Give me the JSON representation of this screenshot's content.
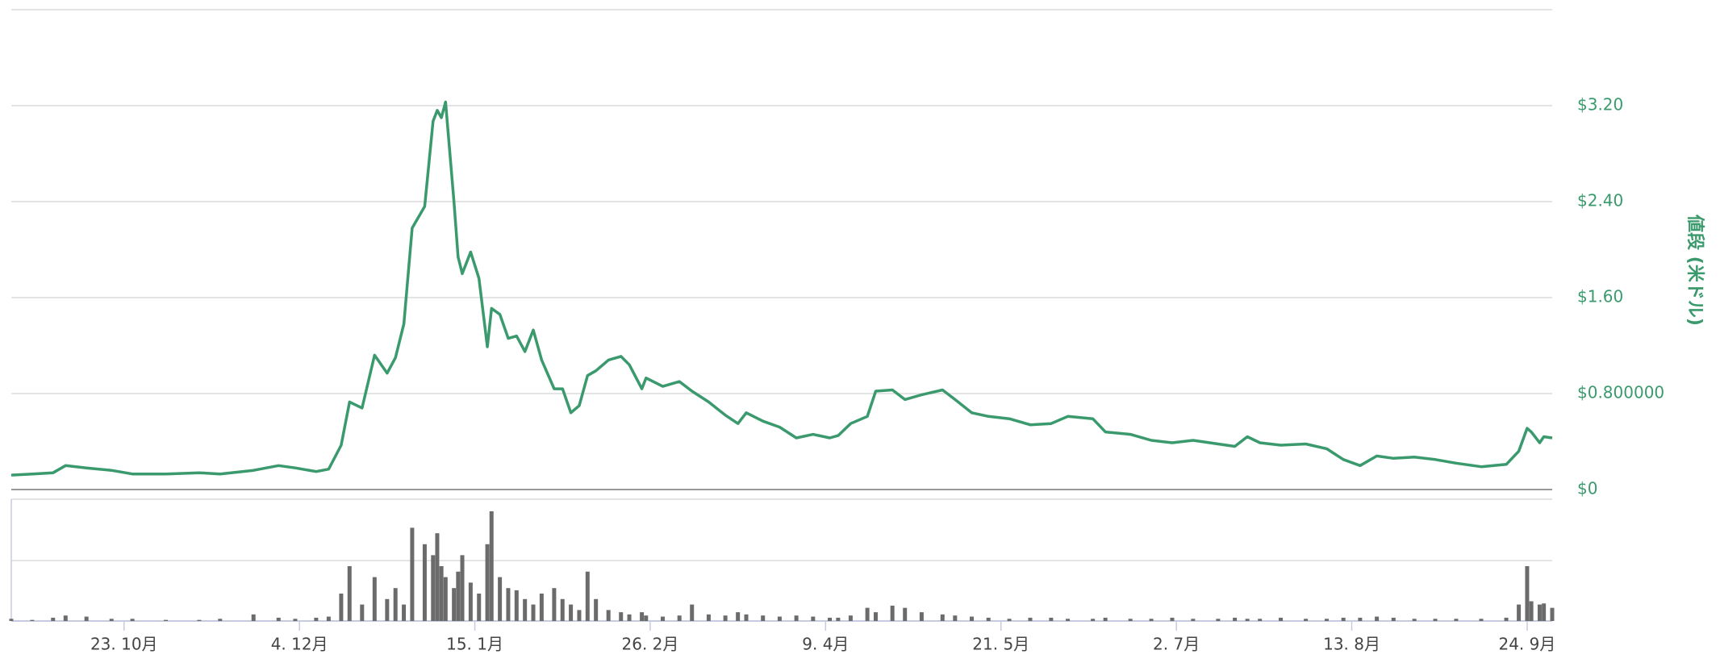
{
  "chart_data": [
    {
      "type": "line",
      "color": "#3b9a6d",
      "y2label": "値段 (米ドル)",
      "xlim": [
        0,
        369
      ],
      "x": [
        0,
        5,
        10,
        13,
        18,
        24,
        29,
        37,
        45,
        50,
        58,
        64,
        68,
        73,
        76,
        79,
        81,
        84,
        87,
        90,
        92,
        94,
        96,
        99,
        101,
        102,
        103,
        104,
        106,
        107,
        108,
        110,
        112,
        114,
        115,
        117,
        119,
        121,
        123,
        125,
        127,
        130,
        132,
        134,
        136,
        138,
        140,
        143,
        146,
        148,
        151,
        152,
        156,
        160,
        163,
        167,
        171,
        174,
        176,
        180,
        184,
        188,
        192,
        196,
        198,
        201,
        205,
        207,
        211,
        214,
        218,
        223,
        226,
        230,
        234,
        239,
        244,
        249,
        253,
        259,
        262,
        268,
        273,
        278,
        283,
        289,
        293,
        296,
        299,
        304,
        310,
        315,
        319,
        323,
        327,
        331,
        336,
        341,
        346,
        352,
        358,
        361,
        363,
        364,
        366,
        367,
        369
      ],
      "values": [
        0.12,
        0.13,
        0.14,
        0.2,
        0.18,
        0.16,
        0.13,
        0.13,
        0.14,
        0.13,
        0.16,
        0.2,
        0.18,
        0.15,
        0.17,
        0.37,
        0.73,
        0.68,
        1.12,
        0.97,
        1.1,
        1.38,
        2.18,
        2.36,
        3.07,
        3.16,
        3.1,
        3.23,
        2.4,
        1.94,
        1.8,
        1.98,
        1.76,
        1.19,
        1.51,
        1.46,
        1.26,
        1.28,
        1.15,
        1.33,
        1.08,
        0.84,
        0.84,
        0.64,
        0.7,
        0.95,
        0.99,
        1.08,
        1.11,
        1.04,
        0.84,
        0.93,
        0.86,
        0.9,
        0.82,
        0.73,
        0.62,
        0.55,
        0.64,
        0.57,
        0.52,
        0.43,
        0.46,
        0.43,
        0.45,
        0.55,
        0.61,
        0.82,
        0.83,
        0.75,
        0.79,
        0.83,
        0.75,
        0.64,
        0.61,
        0.59,
        0.54,
        0.55,
        0.61,
        0.59,
        0.48,
        0.46,
        0.41,
        0.39,
        0.41,
        0.38,
        0.36,
        0.44,
        0.39,
        0.37,
        0.38,
        0.34,
        0.25,
        0.2,
        0.28,
        0.26,
        0.27,
        0.25,
        0.22,
        0.19,
        0.21,
        0.32,
        0.51,
        0.48,
        0.39,
        0.44,
        0.43
      ],
      "y2lim": [
        0,
        4
      ],
      "y2ticks": [
        {
          "value": 0,
          "label": "$0"
        },
        {
          "value": 0.8,
          "label": "$0.800000"
        },
        {
          "value": 1.6,
          "label": "$1.60"
        },
        {
          "value": 2.4,
          "label": "$2.40"
        },
        {
          "value": 3.2,
          "label": "$3.20"
        },
        4
      ],
      "grid": true
    },
    {
      "type": "bar",
      "color": "#6b6b6b",
      "xlim": [
        0,
        369
      ],
      "x": [
        0,
        5,
        10,
        13,
        18,
        24,
        29,
        37,
        45,
        50,
        58,
        64,
        68,
        73,
        76,
        79,
        81,
        84,
        87,
        90,
        92,
        94,
        96,
        99,
        101,
        102,
        103,
        104,
        106,
        107,
        108,
        110,
        112,
        114,
        115,
        117,
        119,
        121,
        123,
        125,
        127,
        130,
        132,
        134,
        136,
        138,
        140,
        143,
        146,
        148,
        151,
        152,
        156,
        160,
        163,
        167,
        171,
        174,
        176,
        180,
        184,
        188,
        192,
        196,
        198,
        201,
        205,
        207,
        211,
        214,
        218,
        223,
        226,
        230,
        234,
        239,
        244,
        249,
        253,
        259,
        262,
        268,
        273,
        278,
        283,
        289,
        293,
        296,
        299,
        304,
        310,
        315,
        319,
        323,
        327,
        331,
        336,
        341,
        346,
        352,
        358,
        361,
        363,
        364,
        366,
        367,
        369
      ],
      "values": [
        2,
        1,
        3,
        5,
        4,
        2,
        2,
        1,
        1,
        2,
        6,
        3,
        2,
        3,
        4,
        25,
        50,
        15,
        40,
        20,
        30,
        15,
        85,
        70,
        60,
        80,
        50,
        40,
        30,
        45,
        60,
        35,
        25,
        70,
        100,
        40,
        30,
        28,
        20,
        15,
        25,
        30,
        20,
        15,
        10,
        45,
        20,
        10,
        8,
        6,
        8,
        5,
        4,
        5,
        15,
        6,
        5,
        8,
        6,
        5,
        4,
        5,
        4,
        3,
        3,
        5,
        12,
        8,
        14,
        12,
        8,
        6,
        5,
        4,
        3,
        2,
        3,
        3,
        2,
        2,
        3,
        2,
        2,
        3,
        2,
        2,
        3,
        2,
        2,
        3,
        2,
        2,
        3,
        3,
        4,
        3,
        2,
        2,
        2,
        2,
        3,
        15,
        50,
        18,
        15,
        16,
        12
      ],
      "ylim": [
        0,
        111
      ],
      "yticks": [
        55,
        111
      ],
      "grid": true,
      "xticks": [
        {
          "value": 27,
          "label": "23. 10月"
        },
        {
          "value": 69,
          "label": "4. 12月"
        },
        {
          "value": 111,
          "label": "15. 1月"
        },
        {
          "value": 153,
          "label": "26. 2月"
        },
        {
          "value": 195,
          "label": "9. 4月"
        },
        {
          "value": 237,
          "label": "21. 5月"
        },
        {
          "value": 279,
          "label": "2. 7月"
        },
        {
          "value": 321,
          "label": "13. 8月"
        },
        {
          "value": 363,
          "label": "24. 9月"
        }
      ]
    }
  ]
}
